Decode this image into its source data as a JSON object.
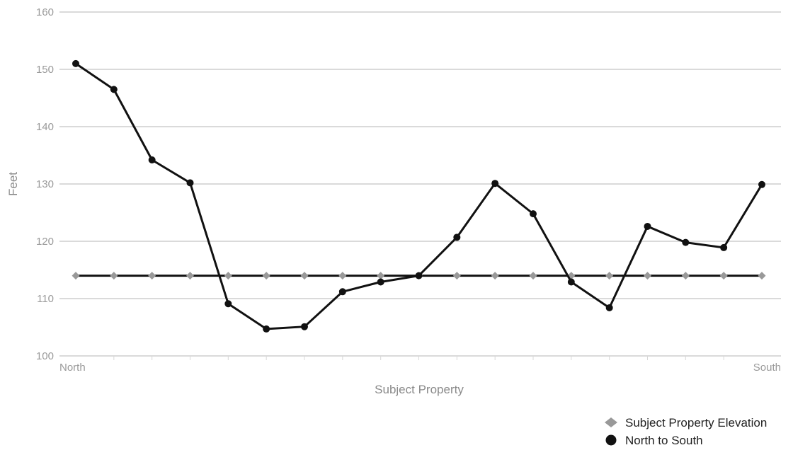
{
  "chart_data": {
    "type": "line",
    "xlabel": "Subject Property",
    "ylabel": "Feet",
    "ylim": [
      100,
      160
    ],
    "yticks": [
      100,
      110,
      120,
      130,
      140,
      150,
      160
    ],
    "x_tick_labels": {
      "first": "North",
      "last": "South"
    },
    "grid": "horizontal",
    "legend_position": "bottom-right",
    "series": [
      {
        "name": "Subject Property Elevation",
        "color": "#999999",
        "line_color": "#111111",
        "values": [
          114,
          114,
          114,
          114,
          114,
          114,
          114,
          114,
          114,
          114,
          114,
          114,
          114,
          114,
          114,
          114,
          114,
          114,
          114
        ]
      },
      {
        "name": "North to South",
        "color": "#111111",
        "values": [
          151,
          146.5,
          134.2,
          130.2,
          109.1,
          104.7,
          105.1,
          111.2,
          112.9,
          114.0,
          120.7,
          130.1,
          124.8,
          112.9,
          108.4,
          122.6,
          119.8,
          118.9,
          129.9
        ]
      }
    ]
  }
}
